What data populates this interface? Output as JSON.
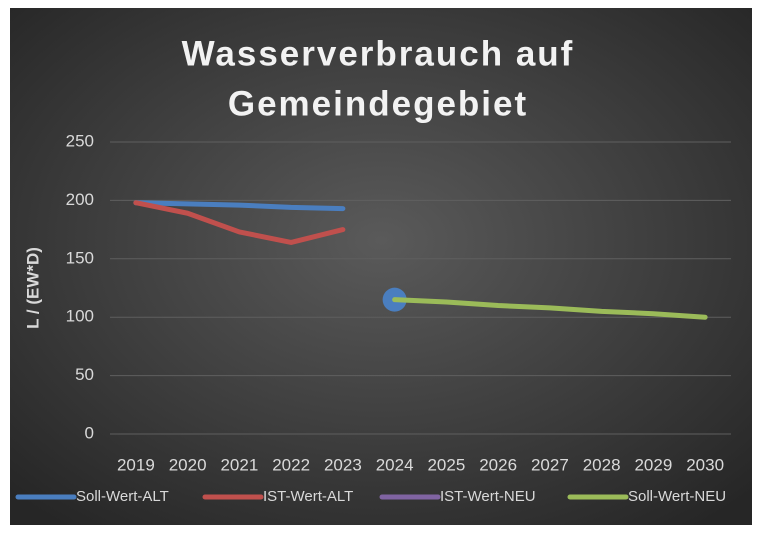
{
  "chart_data": {
    "type": "line",
    "title": [
      "Wasserverbrauch auf",
      "Gemeindegebiet"
    ],
    "y_label": "L / (EW*D)",
    "categories": [
      "2019",
      "2020",
      "2021",
      "2022",
      "2023",
      "2024",
      "2025",
      "2026",
      "2027",
      "2028",
      "2029",
      "2030"
    ],
    "series": [
      {
        "name": "Soll-Wert-ALT",
        "color": "#4a7ebf",
        "values": [
          198,
          197,
          196,
          194,
          193,
          null,
          null,
          null,
          null,
          null,
          null,
          null
        ]
      },
      {
        "name": "IST-Wert-ALT",
        "color": "#c0504d",
        "values": [
          198,
          189,
          173,
          164,
          175,
          null,
          null,
          null,
          null,
          null,
          null,
          null
        ]
      },
      {
        "name": "IST-Wert-NEU",
        "color": "#8064a2",
        "marker_color": "#4a7ebf",
        "values": [
          null,
          null,
          null,
          null,
          null,
          115,
          null,
          null,
          null,
          null,
          null,
          null
        ]
      },
      {
        "name": "Soll-Wert-NEU",
        "color": "#9bbb59",
        "values": [
          null,
          null,
          null,
          null,
          null,
          115,
          113,
          110,
          108,
          105,
          103,
          100
        ]
      }
    ],
    "ylim": [
      0,
      250
    ],
    "yticks": [
      0,
      50,
      100,
      150,
      200,
      250
    ],
    "grid": true,
    "legend": "bottom"
  }
}
